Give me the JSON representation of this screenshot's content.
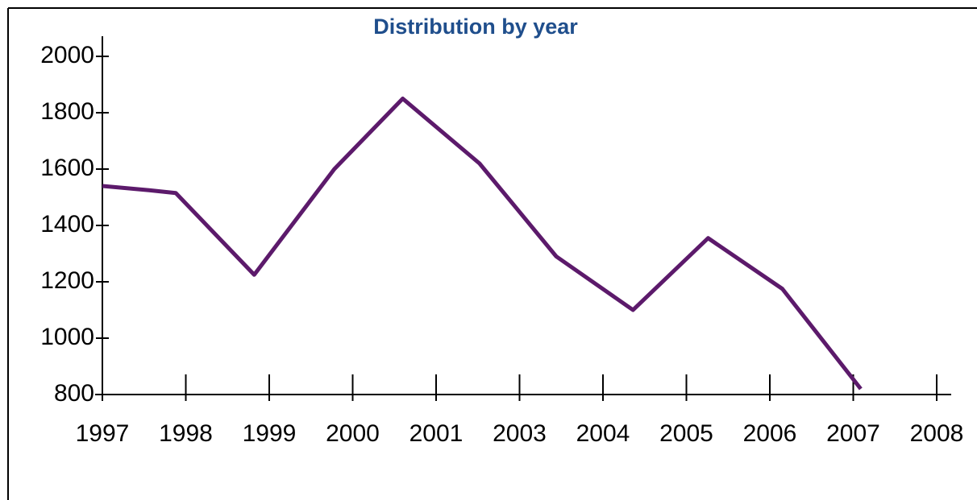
{
  "chart_data": {
    "type": "line",
    "title": "Distribution by year",
    "categories": [
      "1997",
      "1998",
      "1999",
      "2000",
      "2001",
      "2003",
      "2004",
      "2005",
      "2006",
      "2007",
      "2008"
    ],
    "xlim": [
      0,
      10
    ],
    "series": [
      {
        "color": "#5c1a6b",
        "x": [
          0,
          0.56,
          0.88,
          1.82,
          2.78,
          3.6,
          4.52,
          5.44,
          6.36,
          7.26,
          8.15,
          9.09
        ],
        "values": [
          1540,
          1525,
          1515,
          1225,
          1600,
          1850,
          1620,
          1290,
          1100,
          1355,
          1175,
          820
        ]
      }
    ],
    "ylim": [
      800,
      2000
    ],
    "yticks": [
      800,
      1000,
      1200,
      1400,
      1600,
      1800,
      2000
    ],
    "title_color": "#1f4e8c"
  }
}
